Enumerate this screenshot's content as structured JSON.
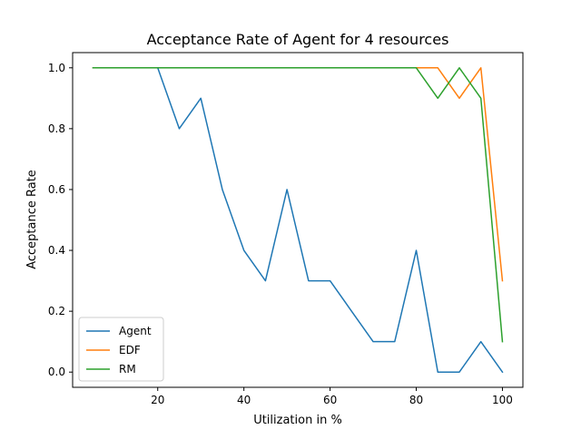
{
  "chart_data": {
    "type": "line",
    "title": "Acceptance Rate of Agent for 4 resources",
    "xlabel": "Utilization in %",
    "ylabel": "Acceptance Rate",
    "xlim": [
      0.25,
      104.75
    ],
    "ylim": [
      -0.05,
      1.05
    ],
    "x_ticks": [
      20,
      40,
      60,
      80,
      100
    ],
    "y_ticks": [
      0.0,
      0.2,
      0.4,
      0.6,
      0.8,
      1.0
    ],
    "x_tick_labels": [
      "20",
      "40",
      "60",
      "80",
      "100"
    ],
    "y_tick_labels": [
      "0.0",
      "0.2",
      "0.4",
      "0.6",
      "0.8",
      "1.0"
    ],
    "x": [
      5,
      10,
      15,
      20,
      25,
      30,
      35,
      40,
      45,
      50,
      55,
      60,
      65,
      70,
      75,
      80,
      85,
      90,
      95,
      100
    ],
    "series": [
      {
        "name": "Agent",
        "color": "#1f77b4",
        "values": [
          1.0,
          1.0,
          1.0,
          1.0,
          0.8,
          0.9,
          0.6,
          0.4,
          0.3,
          0.6,
          0.3,
          0.3,
          0.2,
          0.1,
          0.1,
          0.4,
          0.0,
          0.0,
          0.1,
          0.0
        ]
      },
      {
        "name": "EDF",
        "color": "#ff7f0e",
        "values": [
          1.0,
          1.0,
          1.0,
          1.0,
          1.0,
          1.0,
          1.0,
          1.0,
          1.0,
          1.0,
          1.0,
          1.0,
          1.0,
          1.0,
          1.0,
          1.0,
          1.0,
          0.9,
          1.0,
          0.3
        ]
      },
      {
        "name": "RM",
        "color": "#2ca02c",
        "values": [
          1.0,
          1.0,
          1.0,
          1.0,
          1.0,
          1.0,
          1.0,
          1.0,
          1.0,
          1.0,
          1.0,
          1.0,
          1.0,
          1.0,
          1.0,
          1.0,
          0.9,
          1.0,
          0.9,
          0.1
        ]
      }
    ],
    "grid": false,
    "legend_position": "lower-left"
  }
}
